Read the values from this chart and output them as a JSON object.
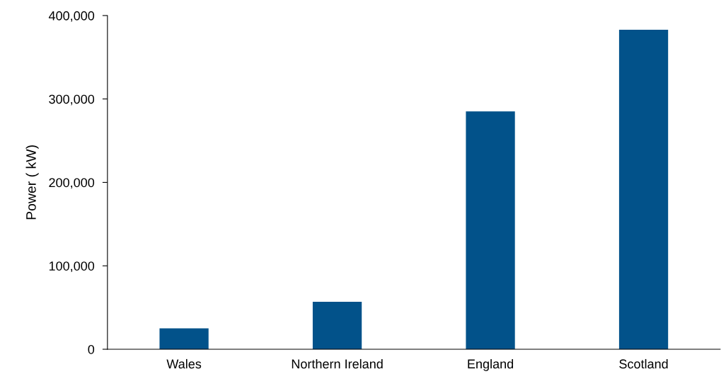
{
  "chart_data": {
    "type": "bar",
    "ylabel": "Power ( kW)",
    "categories": [
      "Wales",
      "Northern Ireland",
      "England",
      "Scotland"
    ],
    "values": [
      25000,
      57000,
      285000,
      383000
    ],
    "color": "#02528a",
    "ylim": [
      0,
      400000
    ],
    "yticks": [
      {
        "value": 0,
        "label": "0"
      },
      {
        "value": 100000,
        "label": "100,000"
      },
      {
        "value": 200000,
        "label": "200,000"
      },
      {
        "value": 300000,
        "label": "300,000"
      },
      {
        "value": 400000,
        "label": "400,000"
      }
    ],
    "grid": false,
    "legend": false
  }
}
